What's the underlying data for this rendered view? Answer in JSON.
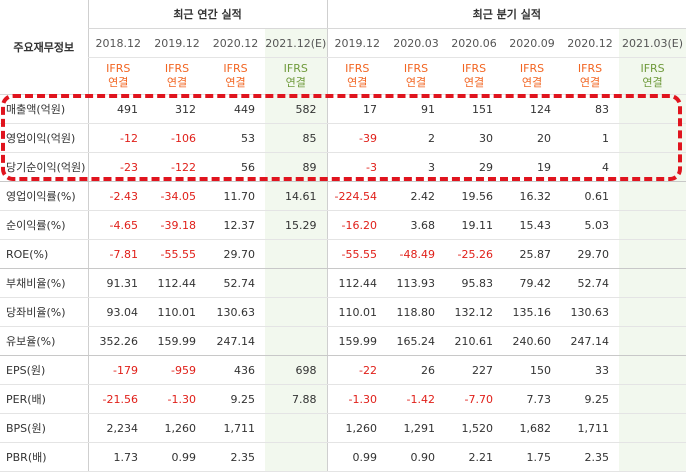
{
  "header": {
    "corner_label": "주요재무정보",
    "annual_group": "최근 연간 실적",
    "quarter_group": "최근 분기 실적",
    "annual_periods": [
      "2018.12",
      "2019.12",
      "2020.12",
      "2021.12(E)"
    ],
    "quarter_periods": [
      "2019.12",
      "2020.03",
      "2020.06",
      "2020.09",
      "2020.12",
      "2021.03(E)"
    ],
    "ifrs_top": "IFRS",
    "ifrs_bottom": "연결"
  },
  "rows": [
    {
      "label": "매출액(억원)",
      "annual": [
        "491",
        "312",
        "449",
        "582"
      ],
      "quarter": [
        "17",
        "91",
        "151",
        "124",
        "83",
        ""
      ]
    },
    {
      "label": "영업이익(억원)",
      "annual": [
        "-12",
        "-106",
        "53",
        "85"
      ],
      "quarter": [
        "-39",
        "2",
        "30",
        "20",
        "1",
        ""
      ]
    },
    {
      "label": "당기순이익(억원)",
      "annual": [
        "-23",
        "-122",
        "56",
        "89"
      ],
      "quarter": [
        "-3",
        "3",
        "29",
        "19",
        "4",
        ""
      ]
    },
    {
      "label": "영업이익률(%)",
      "annual": [
        "-2.43",
        "-34.05",
        "11.70",
        "14.61"
      ],
      "quarter": [
        "-224.54",
        "2.42",
        "19.56",
        "16.32",
        "0.61",
        ""
      ]
    },
    {
      "label": "순이익률(%)",
      "annual": [
        "-4.65",
        "-39.18",
        "12.37",
        "15.29"
      ],
      "quarter": [
        "-16.20",
        "3.68",
        "19.11",
        "15.43",
        "5.03",
        ""
      ]
    },
    {
      "label": "ROE(%)",
      "annual": [
        "-7.81",
        "-55.55",
        "29.70",
        ""
      ],
      "quarter": [
        "-55.55",
        "-48.49",
        "-25.26",
        "25.87",
        "29.70",
        ""
      ]
    },
    {
      "label": "부채비율(%)",
      "annual": [
        "91.31",
        "112.44",
        "52.74",
        ""
      ],
      "quarter": [
        "112.44",
        "113.93",
        "95.83",
        "79.42",
        "52.74",
        ""
      ]
    },
    {
      "label": "당좌비율(%)",
      "annual": [
        "93.04",
        "110.01",
        "130.63",
        ""
      ],
      "quarter": [
        "110.01",
        "118.80",
        "132.12",
        "135.16",
        "130.63",
        ""
      ]
    },
    {
      "label": "유보율(%)",
      "annual": [
        "352.26",
        "159.99",
        "247.14",
        ""
      ],
      "quarter": [
        "159.99",
        "165.24",
        "210.61",
        "240.60",
        "247.14",
        ""
      ]
    },
    {
      "label": "EPS(원)",
      "annual": [
        "-179",
        "-959",
        "436",
        "698"
      ],
      "quarter": [
        "-22",
        "26",
        "227",
        "150",
        "33",
        ""
      ]
    },
    {
      "label": "PER(배)",
      "annual": [
        "-21.56",
        "-1.30",
        "9.25",
        "7.88"
      ],
      "quarter": [
        "-1.30",
        "-1.42",
        "-7.70",
        "7.73",
        "9.25",
        ""
      ]
    },
    {
      "label": "BPS(원)",
      "annual": [
        "2,234",
        "1,260",
        "1,711",
        ""
      ],
      "quarter": [
        "1,260",
        "1,291",
        "1,520",
        "1,682",
        "1,711",
        ""
      ]
    },
    {
      "label": "PBR(배)",
      "annual": [
        "1.73",
        "0.99",
        "2.35",
        ""
      ],
      "quarter": [
        "0.99",
        "0.90",
        "2.21",
        "1.75",
        "2.35",
        ""
      ]
    }
  ],
  "colors": {
    "negative": "#e0201a",
    "ifrs": "#f26522",
    "estimate_text": "#6f9a3b",
    "estimate_bg": "#f2f8ee",
    "highlight": "#e0141e"
  }
}
